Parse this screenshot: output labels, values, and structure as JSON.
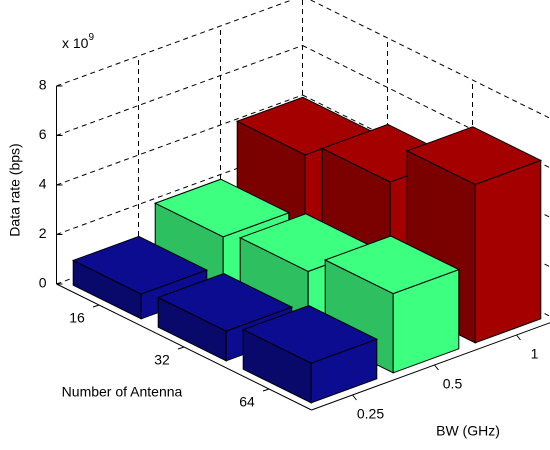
{
  "chart_data": {
    "type": "bar3d",
    "zlabel": "Data rate (bps)",
    "scale_label": "x 10",
    "scale_exponent": "9",
    "xlabel": "Number of Antenna",
    "ylabel": "BW (GHz)",
    "categories": [
      "16",
      "32",
      "64"
    ],
    "series": [
      {
        "name": "0.25",
        "color": "#0c0c90",
        "values": [
          1.0,
          1.2,
          1.6
        ]
      },
      {
        "name": "0.5",
        "color": "#3dff80",
        "values": [
          2.1,
          2.4,
          3.2
        ]
      },
      {
        "name": "1",
        "color": "#a40000",
        "values": [
          4.2,
          4.8,
          6.4
        ]
      }
    ],
    "zlim": [
      0,
      8
    ],
    "zticks": [
      0,
      2,
      4,
      6,
      8
    ],
    "grid": true
  }
}
